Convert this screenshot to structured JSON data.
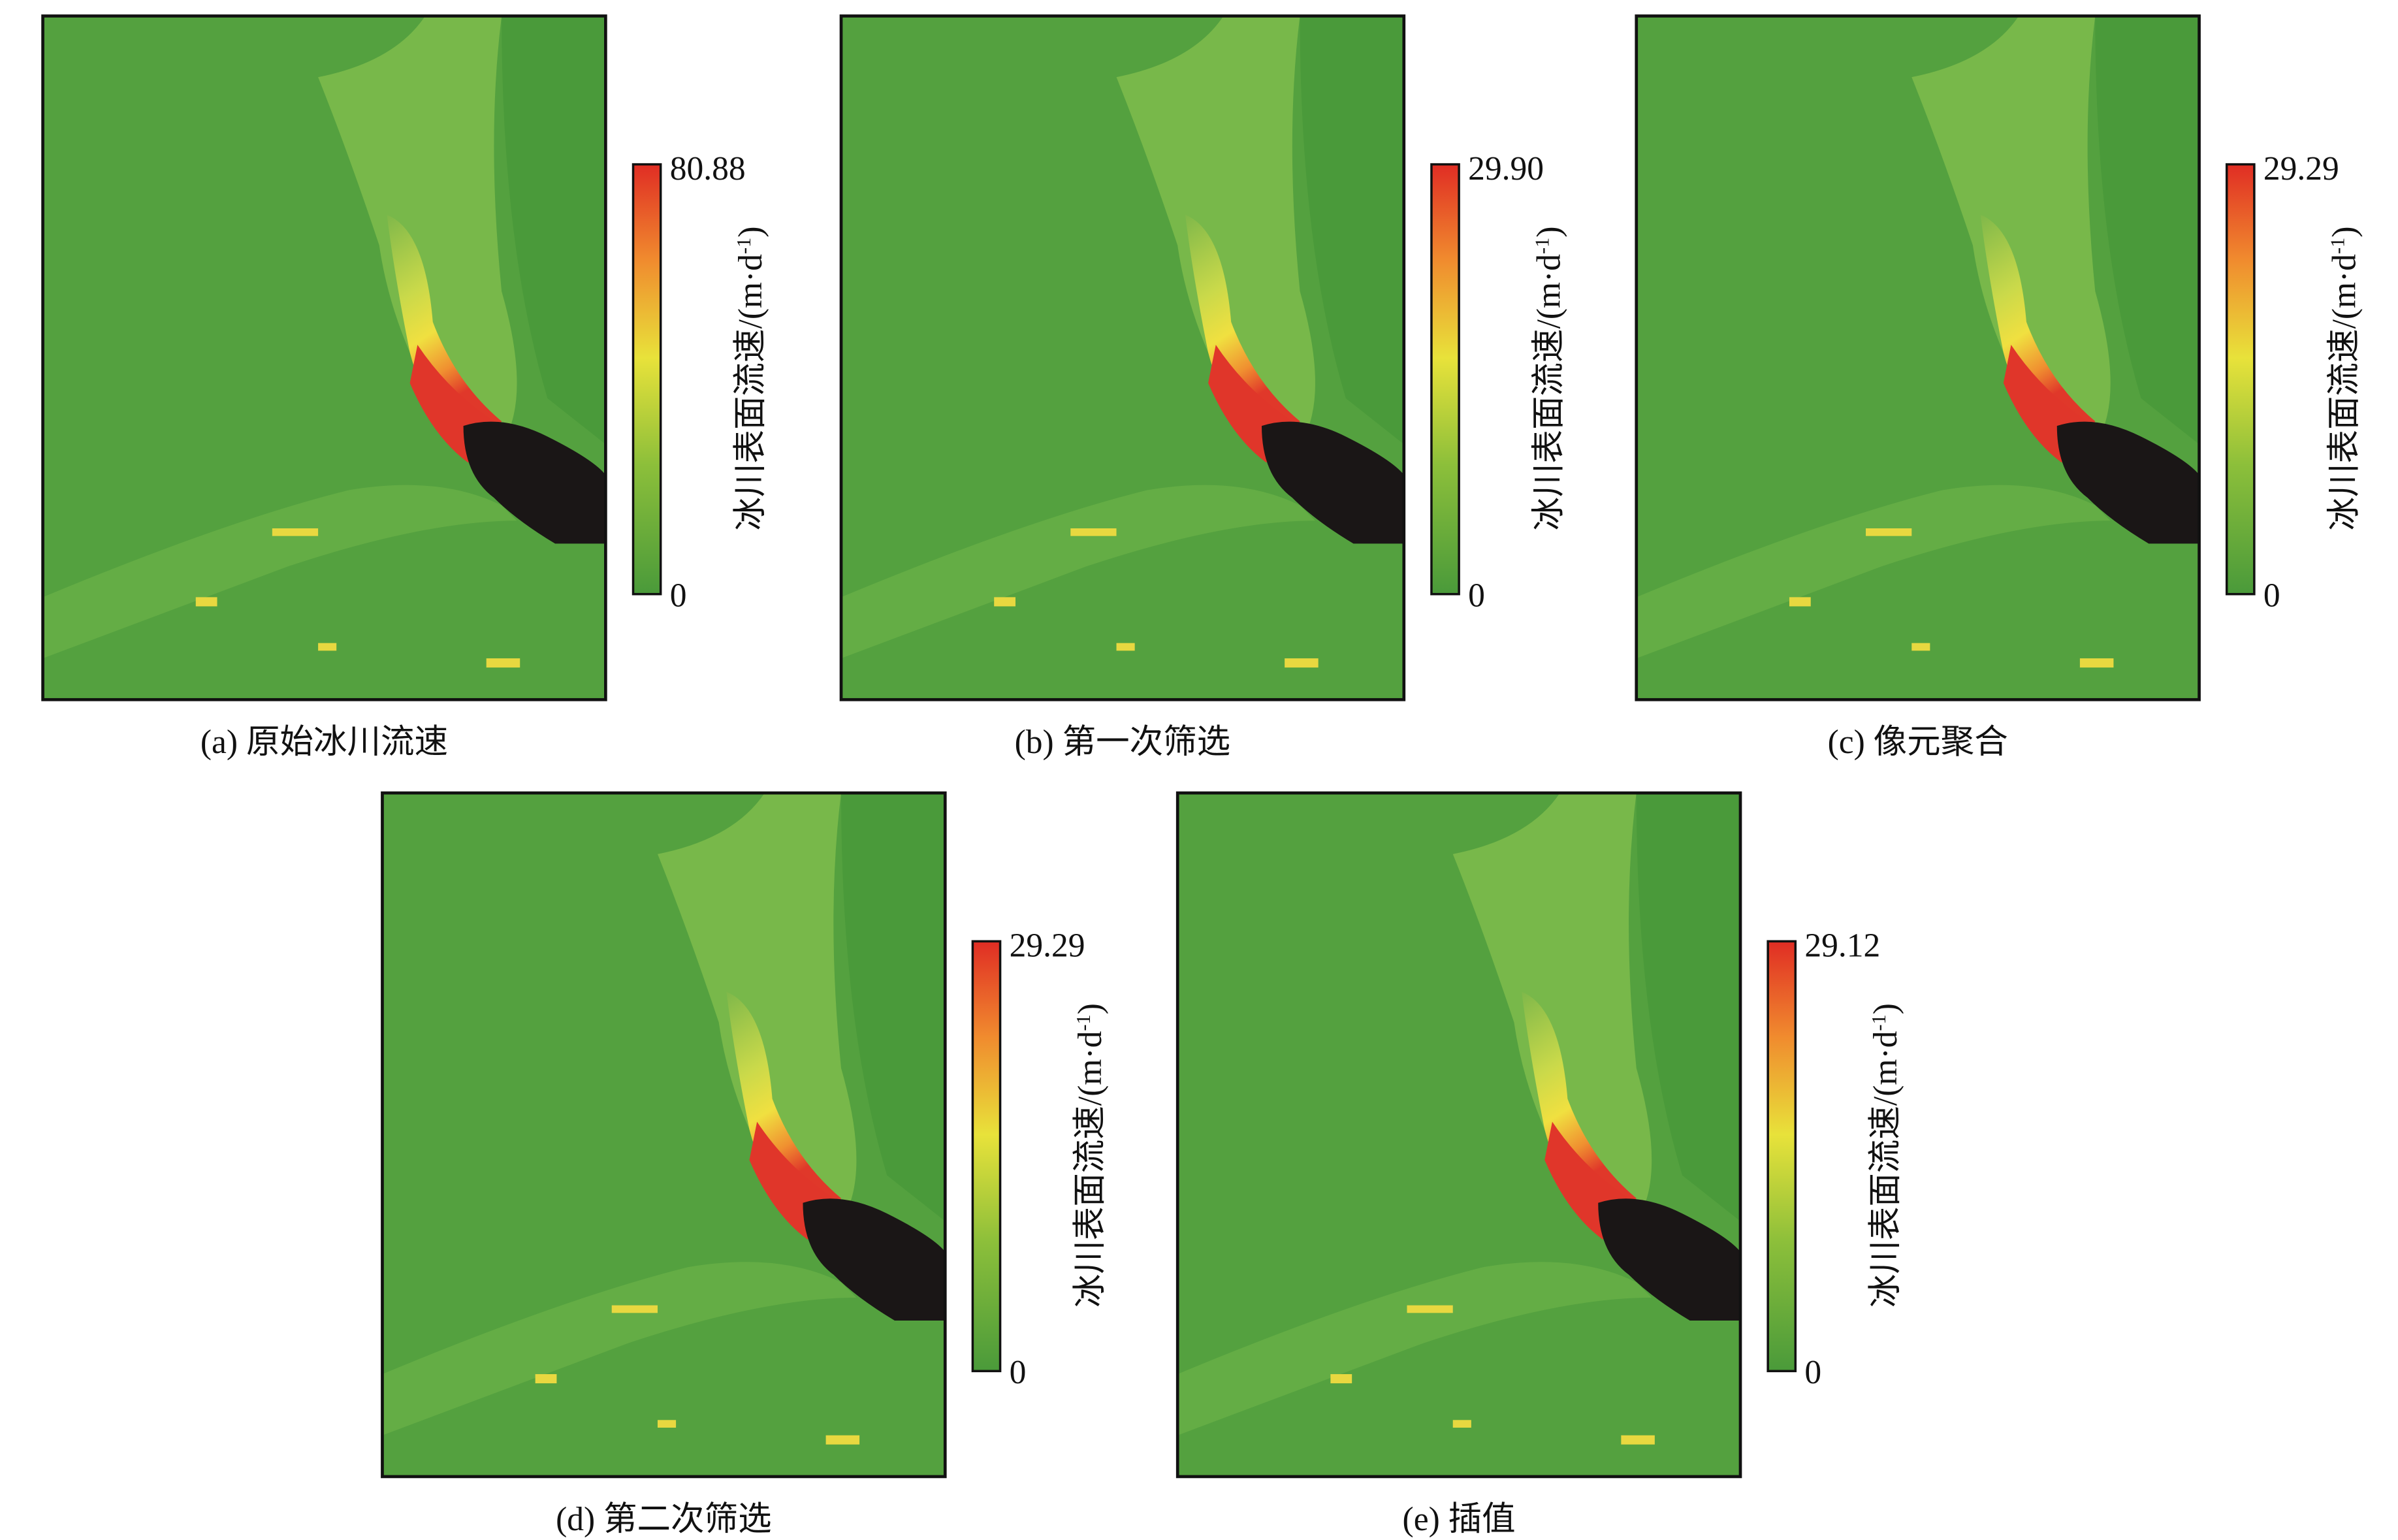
{
  "panels": [
    {
      "caption": "(a) 原始冰川流速",
      "colorbar": {
        "max": "80.88",
        "min": "0",
        "label": "冰川表面流速/(m·d",
        "label_sup": "-1",
        "label_end": ")"
      }
    },
    {
      "caption": "(b) 第一次筛选",
      "colorbar": {
        "max": "29.90",
        "min": "0",
        "label": "冰川表面流速/(m·d",
        "label_sup": "-1",
        "label_end": ")"
      }
    },
    {
      "caption": "(c) 像元聚合",
      "colorbar": {
        "max": "29.29",
        "min": "0",
        "label": "冰川表面流速/(m·d",
        "label_sup": "-1",
        "label_end": ")"
      }
    },
    {
      "caption": "(d) 第二次筛选",
      "colorbar": {
        "max": "29.29",
        "min": "0",
        "label": "冰川表面流速/(m·d",
        "label_sup": "-1",
        "label_end": ")"
      }
    },
    {
      "caption": "(e) 插值",
      "colorbar": {
        "max": "29.12",
        "min": "0",
        "label": "冰川表面流速/(m·d",
        "label_sup": "-1",
        "label_end": ")"
      }
    }
  ]
}
